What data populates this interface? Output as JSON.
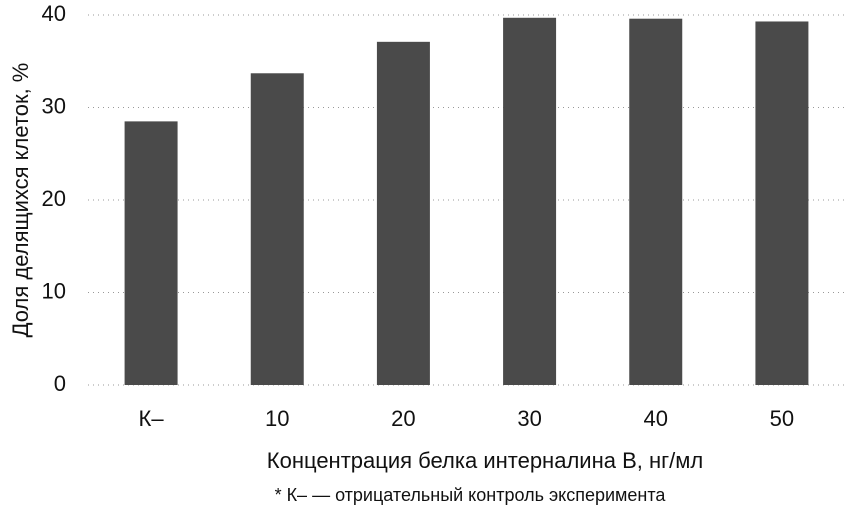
{
  "chart_data": {
    "type": "bar",
    "y_label": "Доля делящихся клеток, %",
    "x_label": "Концентрация белка интерналина В, нг/мл",
    "footnote": "* К– — отрицательный контроль эксперимента",
    "categories": [
      "К–",
      "10",
      "20",
      "30",
      "40",
      "50"
    ],
    "values": [
      28.5,
      33.7,
      37.1,
      39.7,
      39.6,
      39.3
    ],
    "color": "#4a4a4a",
    "ylim": [
      0,
      40
    ],
    "yticks": [
      0,
      10,
      20,
      30,
      40
    ],
    "grid": true
  }
}
